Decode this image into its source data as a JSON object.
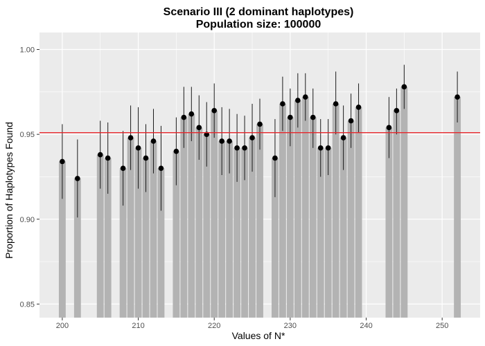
{
  "chart_data": {
    "type": "bar",
    "title": "Scenario III (2 dominant haplotypes)",
    "subtitle": "Population size: 100000",
    "xlabel": "Values of N*",
    "ylabel": "Proportion of Haplotypes Found",
    "xlim": [
      197,
      255
    ],
    "ylim": [
      0.842,
      1.01
    ],
    "x_ticks": [
      200,
      210,
      220,
      230,
      240,
      250
    ],
    "y_ticks": [
      0.85,
      0.9,
      0.95,
      1.0
    ],
    "x_tick_labels": [
      "200",
      "210",
      "220",
      "230",
      "240",
      "250"
    ],
    "y_tick_labels": [
      "0.85",
      "0.90",
      "0.95",
      "1.00"
    ],
    "reference_line": 0.951,
    "grid": true,
    "colors": {
      "panel": "#ebebeb",
      "grid": "#ffffff",
      "bar": "#b3b3b3",
      "point": "#000000",
      "errorbar": "#1a1a1a",
      "reference_line": "#e8262b"
    },
    "points": [
      {
        "x": 200,
        "y": 0.934,
        "lo": 0.912,
        "hi": 0.956
      },
      {
        "x": 202,
        "y": 0.924,
        "lo": 0.901,
        "hi": 0.947
      },
      {
        "x": 205,
        "y": 0.938,
        "lo": 0.918,
        "hi": 0.958
      },
      {
        "x": 206,
        "y": 0.936,
        "lo": 0.915,
        "hi": 0.957
      },
      {
        "x": 208,
        "y": 0.93,
        "lo": 0.908,
        "hi": 0.952
      },
      {
        "x": 209,
        "y": 0.948,
        "lo": 0.929,
        "hi": 0.967
      },
      {
        "x": 210,
        "y": 0.942,
        "lo": 0.918,
        "hi": 0.966
      },
      {
        "x": 211,
        "y": 0.936,
        "lo": 0.916,
        "hi": 0.956
      },
      {
        "x": 212,
        "y": 0.946,
        "lo": 0.927,
        "hi": 0.965
      },
      {
        "x": 213,
        "y": 0.93,
        "lo": 0.905,
        "hi": 0.955
      },
      {
        "x": 215,
        "y": 0.94,
        "lo": 0.92,
        "hi": 0.96
      },
      {
        "x": 216,
        "y": 0.96,
        "lo": 0.942,
        "hi": 0.978
      },
      {
        "x": 217,
        "y": 0.962,
        "lo": 0.946,
        "hi": 0.978
      },
      {
        "x": 218,
        "y": 0.954,
        "lo": 0.935,
        "hi": 0.973
      },
      {
        "x": 219,
        "y": 0.95,
        "lo": 0.931,
        "hi": 0.969
      },
      {
        "x": 220,
        "y": 0.964,
        "lo": 0.948,
        "hi": 0.98
      },
      {
        "x": 221,
        "y": 0.946,
        "lo": 0.926,
        "hi": 0.966
      },
      {
        "x": 222,
        "y": 0.946,
        "lo": 0.927,
        "hi": 0.965
      },
      {
        "x": 223,
        "y": 0.942,
        "lo": 0.922,
        "hi": 0.962
      },
      {
        "x": 224,
        "y": 0.942,
        "lo": 0.923,
        "hi": 0.961
      },
      {
        "x": 225,
        "y": 0.948,
        "lo": 0.928,
        "hi": 0.968
      },
      {
        "x": 226,
        "y": 0.956,
        "lo": 0.941,
        "hi": 0.971
      },
      {
        "x": 228,
        "y": 0.936,
        "lo": 0.913,
        "hi": 0.959
      },
      {
        "x": 229,
        "y": 0.968,
        "lo": 0.952,
        "hi": 0.984
      },
      {
        "x": 230,
        "y": 0.96,
        "lo": 0.943,
        "hi": 0.977
      },
      {
        "x": 231,
        "y": 0.97,
        "lo": 0.954,
        "hi": 0.986
      },
      {
        "x": 232,
        "y": 0.972,
        "lo": 0.958,
        "hi": 0.986
      },
      {
        "x": 233,
        "y": 0.96,
        "lo": 0.942,
        "hi": 0.977
      },
      {
        "x": 234,
        "y": 0.942,
        "lo": 0.925,
        "hi": 0.959
      },
      {
        "x": 235,
        "y": 0.942,
        "lo": 0.926,
        "hi": 0.959
      },
      {
        "x": 236,
        "y": 0.968,
        "lo": 0.95,
        "hi": 0.987
      },
      {
        "x": 237,
        "y": 0.948,
        "lo": 0.929,
        "hi": 0.967
      },
      {
        "x": 238,
        "y": 0.958,
        "lo": 0.942,
        "hi": 0.974
      },
      {
        "x": 239,
        "y": 0.966,
        "lo": 0.951,
        "hi": 0.98
      },
      {
        "x": 243,
        "y": 0.954,
        "lo": 0.936,
        "hi": 0.972
      },
      {
        "x": 244,
        "y": 0.964,
        "lo": 0.95,
        "hi": 0.977
      },
      {
        "x": 245,
        "y": 0.978,
        "lo": 0.965,
        "hi": 0.991
      },
      {
        "x": 252,
        "y": 0.972,
        "lo": 0.957,
        "hi": 0.987
      }
    ]
  }
}
